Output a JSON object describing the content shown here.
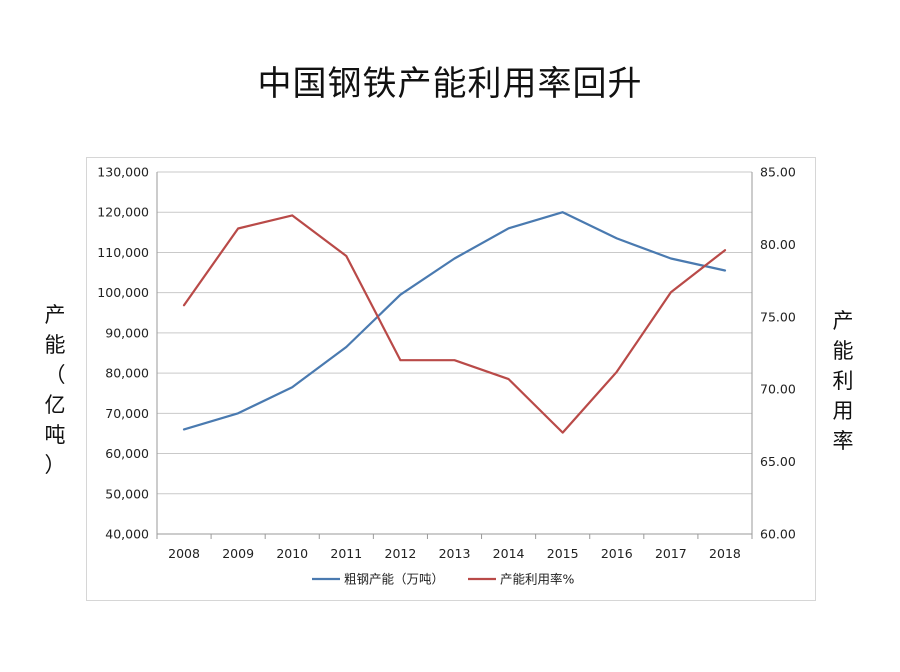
{
  "chart_data": {
    "type": "line",
    "title": "中国钢铁产能利用率回升",
    "ylabel_left": "产能（亿吨）",
    "ylabel_right": "产能利用率",
    "categories": [
      "2008",
      "2009",
      "2010",
      "2011",
      "2012",
      "2013",
      "2014",
      "2015",
      "2016",
      "2017",
      "2018"
    ],
    "left_axis": {
      "ylim": [
        40000,
        130000
      ],
      "ticks": [
        40000,
        50000,
        60000,
        70000,
        80000,
        90000,
        100000,
        110000,
        120000,
        130000
      ],
      "tick_labels": [
        "40,000",
        "50,000",
        "60,000",
        "70,000",
        "80,000",
        "90,000",
        "100,000",
        "110,000",
        "120,000",
        "130,000"
      ]
    },
    "right_axis": {
      "ylim": [
        60,
        85
      ],
      "ticks": [
        60,
        65,
        70,
        75,
        80,
        85
      ],
      "tick_labels": [
        "60.00",
        "65.00",
        "70.00",
        "75.00",
        "80.00",
        "85.00"
      ]
    },
    "series": [
      {
        "name": "粗钢产能（万吨）",
        "axis": "left",
        "color": "#4a7ab0",
        "values": [
          66000,
          70000,
          76500,
          86500,
          99500,
          108500,
          116000,
          120000,
          113500,
          108500,
          105500
        ]
      },
      {
        "name": "产能利用率%",
        "axis": "right",
        "color": "#b94a48",
        "values": [
          75.8,
          81.1,
          82.0,
          79.2,
          72.0,
          72.0,
          70.7,
          67.0,
          71.2,
          76.7,
          79.6
        ]
      }
    ],
    "grid": true,
    "legend_position": "bottom"
  }
}
